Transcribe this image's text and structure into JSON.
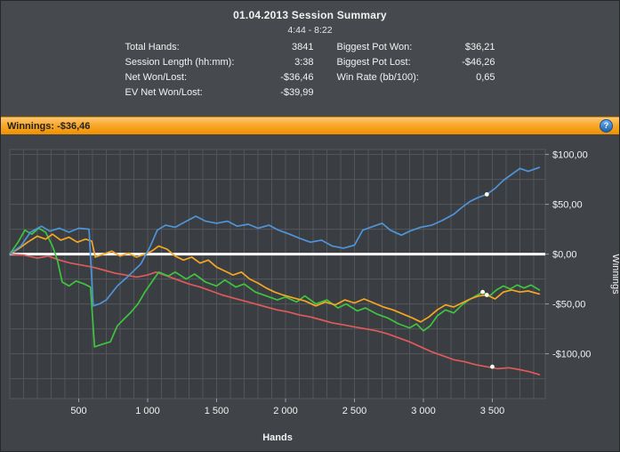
{
  "header": {
    "title": "01.04.2013 Session Summary",
    "time_range": "4:44 - 8:22"
  },
  "stats": {
    "left": [
      {
        "label": "Total Hands:",
        "value": "3841"
      },
      {
        "label": "Session Length (hh:mm):",
        "value": "3:38"
      },
      {
        "label": "Net Won/Lost:",
        "value": "-$36,46"
      },
      {
        "label": "EV Net Won/Lost:",
        "value": "-$39,99"
      }
    ],
    "right": [
      {
        "label": "Biggest Pot Won:",
        "value": "$36,21"
      },
      {
        "label": "Biggest Pot Lost:",
        "value": "-$46,26"
      },
      {
        "label": "Win Rate (bb/100):",
        "value": "0,65"
      }
    ]
  },
  "winnings_bar": {
    "label": "Winnings: -$36,46",
    "help_glyph": "?"
  },
  "colors": {
    "bar_orange": "#f8a82b",
    "help_blue": "#2f7fd0",
    "page_bg": "#46494d"
  },
  "chart_data": {
    "type": "line",
    "title": "",
    "xlabel": "Hands",
    "ylabel": "Winnings",
    "xlim": [
      0,
      3884
    ],
    "ylim": [
      -145,
      105
    ],
    "x_ticks": [
      500,
      1000,
      1500,
      2000,
      2500,
      3000,
      3500
    ],
    "x_tick_labels": [
      "500",
      "1 000",
      "1 500",
      "2 000",
      "2 500",
      "3 000",
      "3 500"
    ],
    "y_ticks": [
      100,
      50,
      0,
      -50,
      -100
    ],
    "y_tick_labels": [
      "$100,00",
      "$50,00",
      "$0,00",
      "-$50,00",
      "-$100,00"
    ],
    "grid": {
      "x_step": 100,
      "y_step": 25
    },
    "legend": "none",
    "colors": {
      "plot_bg": "#3a3e42",
      "plot_border": "#55595d",
      "grid": "#53575b",
      "zero_line": "#ffffff",
      "tick": "#9a9da0",
      "marker": "#fdfdf0"
    },
    "series": [
      {
        "name": "red-line",
        "color": "#e05a5a",
        "points": [
          [
            0,
            0
          ],
          [
            100,
            -1
          ],
          [
            200,
            -4
          ],
          [
            280,
            -2
          ],
          [
            360,
            -6
          ],
          [
            440,
            -9
          ],
          [
            520,
            -11
          ],
          [
            600,
            -13
          ],
          [
            680,
            -16
          ],
          [
            760,
            -19
          ],
          [
            840,
            -21
          ],
          [
            920,
            -23
          ],
          [
            1000,
            -21
          ],
          [
            1060,
            -18
          ],
          [
            1140,
            -22
          ],
          [
            1220,
            -26
          ],
          [
            1300,
            -30
          ],
          [
            1380,
            -33
          ],
          [
            1460,
            -37
          ],
          [
            1540,
            -41
          ],
          [
            1620,
            -44
          ],
          [
            1700,
            -47
          ],
          [
            1780,
            -50
          ],
          [
            1860,
            -53
          ],
          [
            1940,
            -56
          ],
          [
            2020,
            -58
          ],
          [
            2100,
            -61
          ],
          [
            2180,
            -63
          ],
          [
            2260,
            -66
          ],
          [
            2340,
            -69
          ],
          [
            2420,
            -71
          ],
          [
            2500,
            -73
          ],
          [
            2580,
            -75
          ],
          [
            2660,
            -77
          ],
          [
            2740,
            -80
          ],
          [
            2820,
            -84
          ],
          [
            2900,
            -88
          ],
          [
            2980,
            -93
          ],
          [
            3060,
            -98
          ],
          [
            3140,
            -102
          ],
          [
            3220,
            -106
          ],
          [
            3300,
            -108
          ],
          [
            3380,
            -111
          ],
          [
            3460,
            -113
          ],
          [
            3540,
            -115
          ],
          [
            3620,
            -114
          ],
          [
            3700,
            -116
          ],
          [
            3770,
            -118
          ],
          [
            3841,
            -121
          ]
        ]
      },
      {
        "name": "green-line",
        "color": "#3fc43f",
        "points": [
          [
            0,
            0
          ],
          [
            60,
            12
          ],
          [
            110,
            24
          ],
          [
            160,
            20
          ],
          [
            210,
            26
          ],
          [
            260,
            22
          ],
          [
            310,
            8
          ],
          [
            345,
            -6
          ],
          [
            380,
            -28
          ],
          [
            430,
            -32
          ],
          [
            480,
            -27
          ],
          [
            540,
            -30
          ],
          [
            585,
            -33
          ],
          [
            615,
            -93
          ],
          [
            680,
            -90
          ],
          [
            730,
            -88
          ],
          [
            780,
            -72
          ],
          [
            830,
            -65
          ],
          [
            880,
            -58
          ],
          [
            930,
            -50
          ],
          [
            980,
            -38
          ],
          [
            1030,
            -28
          ],
          [
            1080,
            -18
          ],
          [
            1150,
            -22
          ],
          [
            1200,
            -18
          ],
          [
            1280,
            -25
          ],
          [
            1340,
            -20
          ],
          [
            1420,
            -28
          ],
          [
            1500,
            -32
          ],
          [
            1560,
            -26
          ],
          [
            1640,
            -33
          ],
          [
            1700,
            -30
          ],
          [
            1780,
            -38
          ],
          [
            1860,
            -42
          ],
          [
            1940,
            -46
          ],
          [
            2000,
            -43
          ],
          [
            2080,
            -48
          ],
          [
            2140,
            -42
          ],
          [
            2220,
            -50
          ],
          [
            2300,
            -46
          ],
          [
            2380,
            -54
          ],
          [
            2440,
            -50
          ],
          [
            2520,
            -57
          ],
          [
            2580,
            -54
          ],
          [
            2660,
            -60
          ],
          [
            2740,
            -64
          ],
          [
            2820,
            -70
          ],
          [
            2900,
            -74
          ],
          [
            2950,
            -70
          ],
          [
            3000,
            -77
          ],
          [
            3050,
            -72
          ],
          [
            3100,
            -62
          ],
          [
            3160,
            -56
          ],
          [
            3220,
            -59
          ],
          [
            3280,
            -51
          ],
          [
            3330,
            -46
          ],
          [
            3380,
            -42
          ],
          [
            3430,
            -38
          ],
          [
            3480,
            -42
          ],
          [
            3530,
            -36
          ],
          [
            3580,
            -32
          ],
          [
            3630,
            -35
          ],
          [
            3680,
            -31
          ],
          [
            3730,
            -34
          ],
          [
            3780,
            -31
          ],
          [
            3841,
            -36
          ]
        ]
      },
      {
        "name": "orange-line",
        "color": "#f5a623",
        "points": [
          [
            0,
            0
          ],
          [
            70,
            6
          ],
          [
            130,
            12
          ],
          [
            200,
            18
          ],
          [
            260,
            15
          ],
          [
            310,
            20
          ],
          [
            370,
            14
          ],
          [
            430,
            17
          ],
          [
            490,
            12
          ],
          [
            550,
            15
          ],
          [
            595,
            13
          ],
          [
            620,
            -3
          ],
          [
            680,
            0
          ],
          [
            740,
            3
          ],
          [
            800,
            -2
          ],
          [
            860,
            1
          ],
          [
            920,
            -3
          ],
          [
            980,
            0
          ],
          [
            1030,
            3
          ],
          [
            1080,
            8
          ],
          [
            1140,
            5
          ],
          [
            1200,
            -2
          ],
          [
            1260,
            -6
          ],
          [
            1320,
            -3
          ],
          [
            1380,
            -9
          ],
          [
            1440,
            -6
          ],
          [
            1500,
            -13
          ],
          [
            1560,
            -17
          ],
          [
            1620,
            -21
          ],
          [
            1680,
            -18
          ],
          [
            1740,
            -25
          ],
          [
            1800,
            -29
          ],
          [
            1860,
            -34
          ],
          [
            1920,
            -38
          ],
          [
            1980,
            -41
          ],
          [
            2060,
            -44
          ],
          [
            2140,
            -47
          ],
          [
            2220,
            -52
          ],
          [
            2290,
            -48
          ],
          [
            2360,
            -51
          ],
          [
            2430,
            -46
          ],
          [
            2500,
            -49
          ],
          [
            2570,
            -45
          ],
          [
            2640,
            -49
          ],
          [
            2710,
            -53
          ],
          [
            2780,
            -56
          ],
          [
            2850,
            -60
          ],
          [
            2920,
            -64
          ],
          [
            2980,
            -68
          ],
          [
            3040,
            -63
          ],
          [
            3100,
            -56
          ],
          [
            3160,
            -51
          ],
          [
            3220,
            -53
          ],
          [
            3280,
            -49
          ],
          [
            3340,
            -45
          ],
          [
            3400,
            -42
          ],
          [
            3460,
            -41
          ],
          [
            3520,
            -45
          ],
          [
            3580,
            -38
          ],
          [
            3640,
            -36
          ],
          [
            3700,
            -38
          ],
          [
            3760,
            -37
          ],
          [
            3841,
            -40
          ]
        ]
      },
      {
        "name": "blue-line",
        "color": "#4f94d8",
        "points": [
          [
            0,
            0
          ],
          [
            80,
            8
          ],
          [
            150,
            22
          ],
          [
            230,
            28
          ],
          [
            290,
            23
          ],
          [
            360,
            26
          ],
          [
            430,
            22
          ],
          [
            500,
            26
          ],
          [
            575,
            25
          ],
          [
            605,
            -52
          ],
          [
            650,
            -50
          ],
          [
            700,
            -46
          ],
          [
            780,
            -32
          ],
          [
            860,
            -22
          ],
          [
            950,
            -10
          ],
          [
            1020,
            8
          ],
          [
            1070,
            24
          ],
          [
            1130,
            29
          ],
          [
            1200,
            27
          ],
          [
            1280,
            33
          ],
          [
            1350,
            38
          ],
          [
            1420,
            33
          ],
          [
            1500,
            31
          ],
          [
            1580,
            33
          ],
          [
            1650,
            28
          ],
          [
            1730,
            30
          ],
          [
            1800,
            26
          ],
          [
            1880,
            29
          ],
          [
            1950,
            24
          ],
          [
            2030,
            20
          ],
          [
            2100,
            16
          ],
          [
            2180,
            12
          ],
          [
            2260,
            14
          ],
          [
            2340,
            8
          ],
          [
            2420,
            6
          ],
          [
            2500,
            9
          ],
          [
            2560,
            24
          ],
          [
            2640,
            28
          ],
          [
            2700,
            31
          ],
          [
            2760,
            24
          ],
          [
            2840,
            19
          ],
          [
            2900,
            23
          ],
          [
            2980,
            27
          ],
          [
            3060,
            29
          ],
          [
            3140,
            34
          ],
          [
            3220,
            40
          ],
          [
            3280,
            47
          ],
          [
            3340,
            53
          ],
          [
            3400,
            57
          ],
          [
            3460,
            60
          ],
          [
            3520,
            66
          ],
          [
            3580,
            74
          ],
          [
            3640,
            80
          ],
          [
            3700,
            86
          ],
          [
            3760,
            83
          ],
          [
            3841,
            87
          ]
        ]
      }
    ],
    "markers": [
      {
        "x": 3460,
        "y": 60
      },
      {
        "x": 3430,
        "y": -38
      },
      {
        "x": 3460,
        "y": -41
      },
      {
        "x": 3500,
        "y": -113
      }
    ]
  }
}
